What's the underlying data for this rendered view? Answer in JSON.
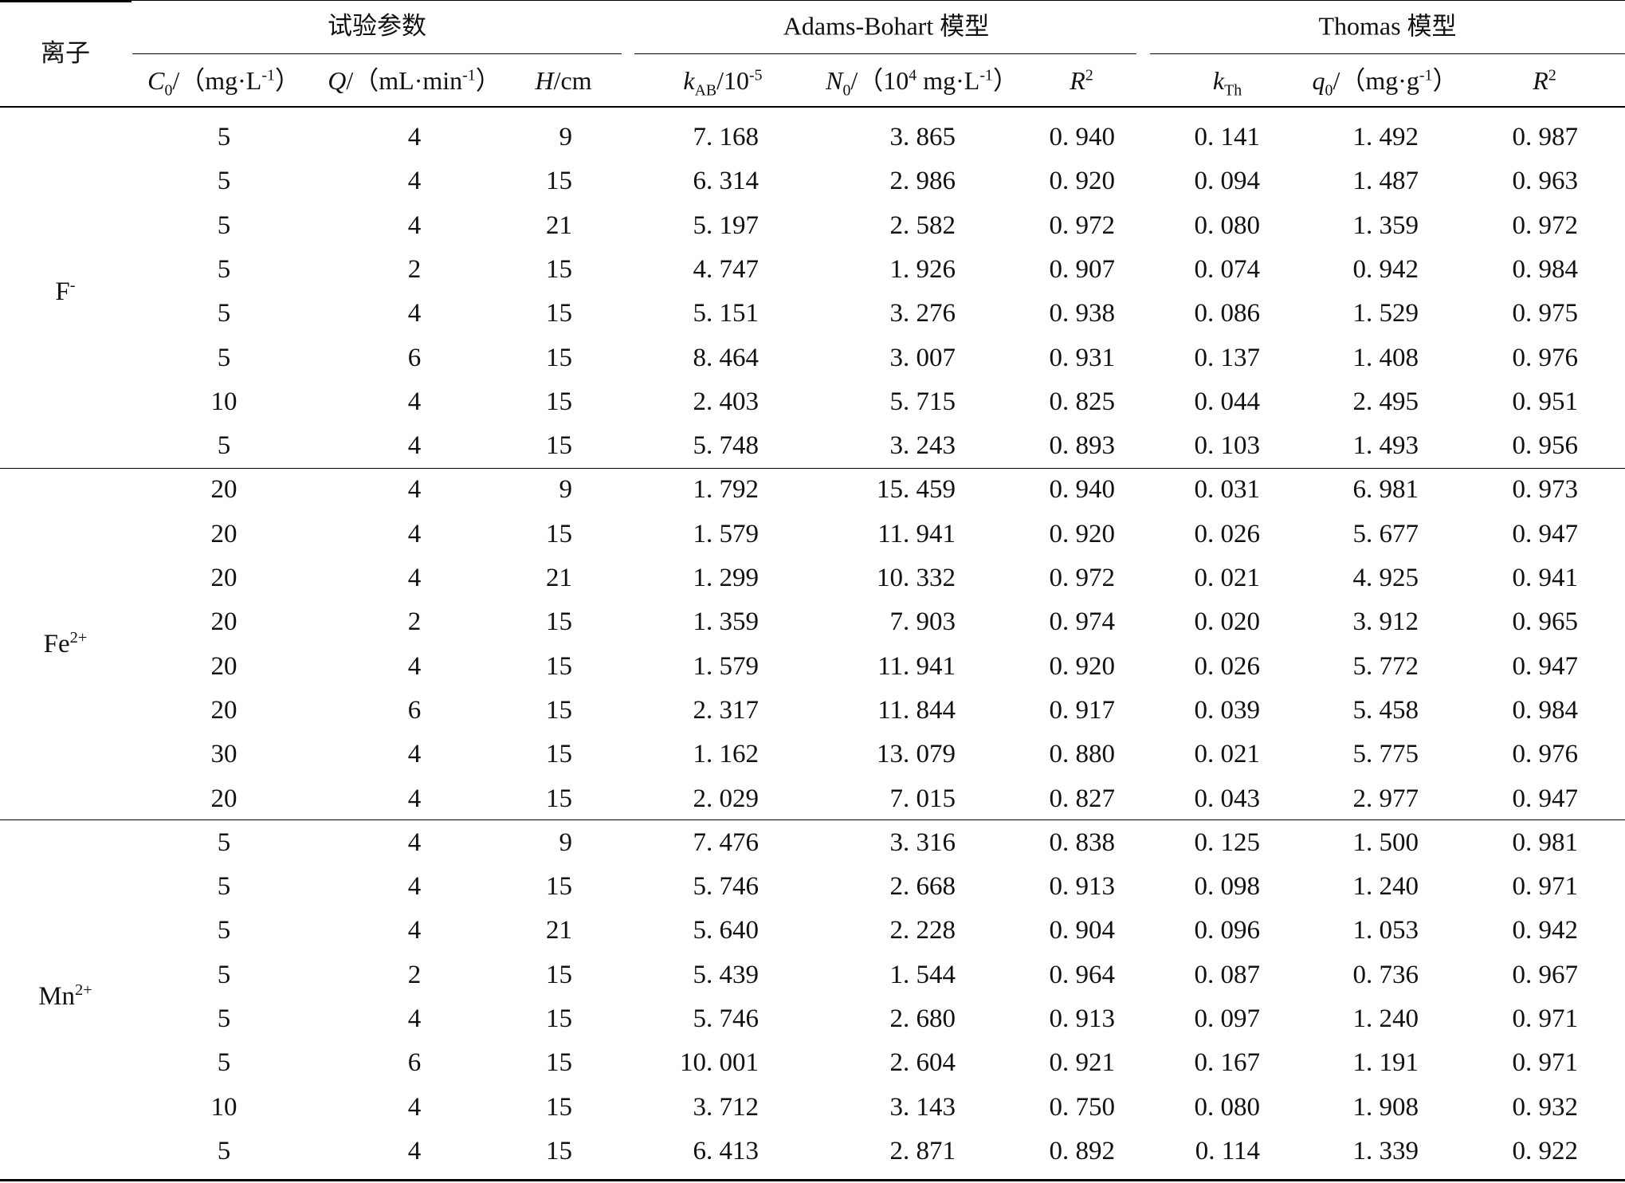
{
  "header": {
    "ion_label": "离子",
    "group_test": "试验参数",
    "group_ab_name": "Adams-Bohart",
    "group_ab_suffix": "模型",
    "group_th_name": "Thomas",
    "group_th_suffix": "模型",
    "col_c0": {
      "sym": "C",
      "sub": "0",
      "unit_a": "/（mg·L",
      "sup": "-1",
      "unit_b": "）"
    },
    "col_q": {
      "sym": "Q",
      "unit_a": "/（mL·min",
      "sup": "-1",
      "unit_b": "）"
    },
    "col_h": {
      "sym": "H",
      "unit": "/cm"
    },
    "col_kab": {
      "sym": "k",
      "sub": "AB",
      "unit": "/10",
      "sup": "-5"
    },
    "col_n0": {
      "sym": "N",
      "sub": "0",
      "unit_a": "/（10",
      "sup1": "4",
      "unit_b": " mg·L",
      "sup2": "-1",
      "unit_c": "）"
    },
    "col_r2_ab": {
      "sym": "R",
      "sup": "2"
    },
    "col_kth": {
      "sym": "k",
      "sub": "Th"
    },
    "col_q0": {
      "sym": "q",
      "sub": "0",
      "unit_a": "/（mg·g",
      "sup": "-1",
      "unit_b": "）"
    },
    "col_r2_th": {
      "sym": "R",
      "sup": "2"
    }
  },
  "groups": [
    {
      "ion": "F",
      "ion_sup": "-",
      "rows": [
        [
          "5",
          "4",
          "9",
          "7. 168",
          "3. 865",
          "0. 940",
          "0. 141",
          "1. 492",
          "0. 987"
        ],
        [
          "5",
          "4",
          "15",
          "6. 314",
          "2. 986",
          "0. 920",
          "0. 094",
          "1. 487",
          "0. 963"
        ],
        [
          "5",
          "4",
          "21",
          "5. 197",
          "2. 582",
          "0. 972",
          "0. 080",
          "1. 359",
          "0. 972"
        ],
        [
          "5",
          "2",
          "15",
          "4. 747",
          "1. 926",
          "0. 907",
          "0. 074",
          "0. 942",
          "0. 984"
        ],
        [
          "5",
          "4",
          "15",
          "5. 151",
          "3. 276",
          "0. 938",
          "0. 086",
          "1. 529",
          "0. 975"
        ],
        [
          "5",
          "6",
          "15",
          "8. 464",
          "3. 007",
          "0. 931",
          "0. 137",
          "1. 408",
          "0. 976"
        ],
        [
          "10",
          "4",
          "15",
          "2. 403",
          "5. 715",
          "0. 825",
          "0. 044",
          "2. 495",
          "0. 951"
        ],
        [
          "5",
          "4",
          "15",
          "5. 748",
          "3. 243",
          "0. 893",
          "0. 103",
          "1. 493",
          "0. 956"
        ]
      ]
    },
    {
      "ion": "Fe",
      "ion_sup": "2+",
      "rows": [
        [
          "20",
          "4",
          "9",
          "1. 792",
          "15. 459",
          "0. 940",
          "0. 031",
          "6. 981",
          "0. 973"
        ],
        [
          "20",
          "4",
          "15",
          "1. 579",
          "11. 941",
          "0. 920",
          "0. 026",
          "5. 677",
          "0. 947"
        ],
        [
          "20",
          "4",
          "21",
          "1. 299",
          "10. 332",
          "0. 972",
          "0. 021",
          "4. 925",
          "0. 941"
        ],
        [
          "20",
          "2",
          "15",
          "1. 359",
          "7. 903",
          "0. 974",
          "0. 020",
          "3. 912",
          "0. 965"
        ],
        [
          "20",
          "4",
          "15",
          "1. 579",
          "11. 941",
          "0. 920",
          "0. 026",
          "5. 772",
          "0. 947"
        ],
        [
          "20",
          "6",
          "15",
          "2. 317",
          "11. 844",
          "0. 917",
          "0. 039",
          "5. 458",
          "0. 984"
        ],
        [
          "30",
          "4",
          "15",
          "1. 162",
          "13. 079",
          "0. 880",
          "0. 021",
          "5. 775",
          "0. 976"
        ],
        [
          "20",
          "4",
          "15",
          "2. 029",
          "7. 015",
          "0. 827",
          "0. 043",
          "2. 977",
          "0. 947"
        ]
      ]
    },
    {
      "ion": "Mn",
      "ion_sup": "2+",
      "rows": [
        [
          "5",
          "4",
          "9",
          "7. 476",
          "3. 316",
          "0. 838",
          "0. 125",
          "1. 500",
          "0. 981"
        ],
        [
          "5",
          "4",
          "15",
          "5. 746",
          "2. 668",
          "0. 913",
          "0. 098",
          "1. 240",
          "0. 971"
        ],
        [
          "5",
          "4",
          "21",
          "5. 640",
          "2. 228",
          "0. 904",
          "0. 096",
          "1. 053",
          "0. 942"
        ],
        [
          "5",
          "2",
          "15",
          "5. 439",
          "1. 544",
          "0. 964",
          "0. 087",
          "0. 736",
          "0. 967"
        ],
        [
          "5",
          "4",
          "15",
          "5. 746",
          "2. 680",
          "0. 913",
          "0. 097",
          "1. 240",
          "0. 971"
        ],
        [
          "5",
          "6",
          "15",
          "10. 001",
          "2. 604",
          "0. 921",
          "0. 167",
          "1. 191",
          "0. 971"
        ],
        [
          "10",
          "4",
          "15",
          "3. 712",
          "3. 143",
          "0. 750",
          "0. 080",
          "1. 908",
          "0. 932"
        ],
        [
          "5",
          "4",
          "15",
          "6. 413",
          "2. 871",
          "0. 892",
          "0. 114",
          "1. 339",
          "0. 922"
        ]
      ]
    }
  ]
}
